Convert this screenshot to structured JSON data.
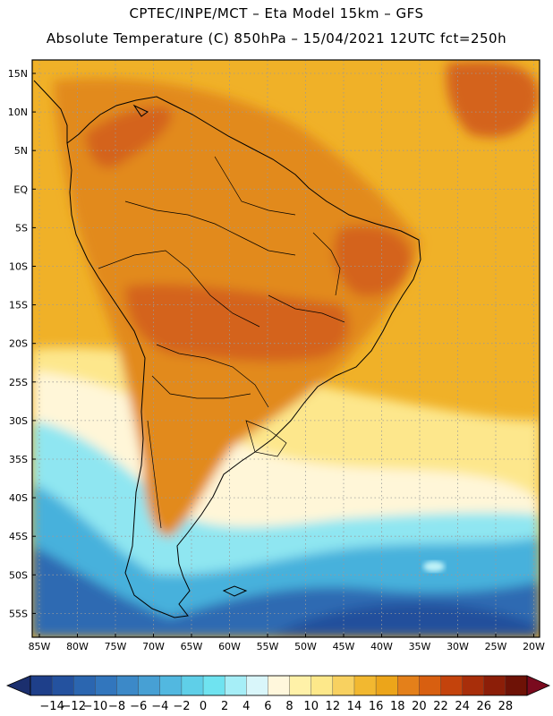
{
  "header": {
    "line1": "CPTEC/INPE/MCT –   Eta Model 15km – GFS",
    "line2": "Absolute Temperature (C) 850hPa – 15/04/2021 12UTC fct=250h"
  },
  "axes": {
    "lat_labels": [
      "15N",
      "10N",
      "5N",
      "EQ",
      "5S",
      "10S",
      "15S",
      "20S",
      "25S",
      "30S",
      "35S",
      "40S",
      "45S",
      "50S",
      "55S"
    ],
    "lon_labels": [
      "85W",
      "80W",
      "75W",
      "70W",
      "65W",
      "60W",
      "55W",
      "50W",
      "45W",
      "40W",
      "35W",
      "30W",
      "25W",
      "20W"
    ]
  },
  "colorbar": {
    "labels": [
      "−14",
      "−12",
      "−10",
      "−8",
      "−6",
      "−4",
      "−2",
      "0",
      "2",
      "4",
      "6",
      "8",
      "10",
      "12",
      "14",
      "16",
      "18",
      "20",
      "22",
      "24",
      "26",
      "28"
    ],
    "colors": [
      "#1e3f8a",
      "#24529f",
      "#2b66b0",
      "#3276bd",
      "#3c89c8",
      "#47a0d4",
      "#52b8e0",
      "#5fcfe8",
      "#6fe3f0",
      "#a6eef7",
      "#d9f6fa",
      "#fff7dc",
      "#fff1a8",
      "#fde88a",
      "#f8d160",
      "#f2b830",
      "#eca51a",
      "#e4801a",
      "#d85f10",
      "#c4430c",
      "#a82e0a",
      "#8c1e08",
      "#6e1206"
    ],
    "under_color": "#1b2f6e",
    "over_color": "#7a0a1e"
  },
  "map": {
    "region": "South America",
    "colors": {
      "ocean_north": "#f0b128",
      "land_hot": "#e28a1c",
      "land_very_hot": "#d4641a",
      "ocean_mid": "#fde78c",
      "ocean_pale": "#fff6d8",
      "ocean_cool": "#8fe6f1",
      "ocean_cold": "#47b1dc",
      "ocean_deep": "#2e6bb2",
      "ocean_deepest": "#23509c"
    }
  }
}
